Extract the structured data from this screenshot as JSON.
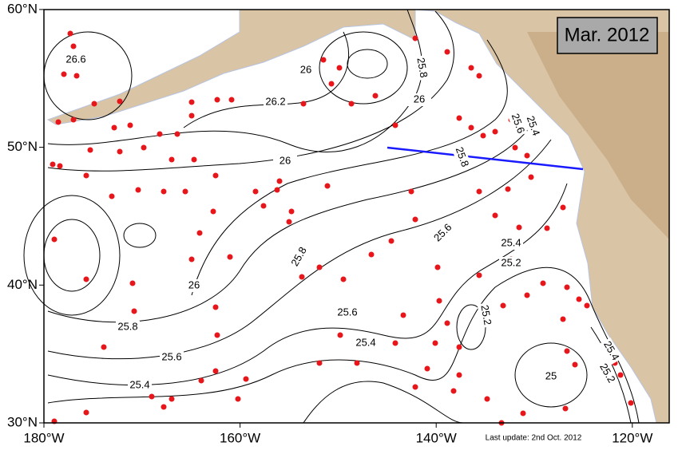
{
  "map": {
    "title": "Mar. 2012",
    "footnote": "Last update: 2nd Oct. 2012",
    "lon_ticks": [
      {
        "value": -180,
        "label": "180°W"
      },
      {
        "value": -160,
        "label": "160°W"
      },
      {
        "value": -140,
        "label": "140°W"
      },
      {
        "value": -120,
        "label": "120°W"
      }
    ],
    "lat_ticks": [
      {
        "value": 30,
        "label": "30°N"
      },
      {
        "value": 40,
        "label": "40°N"
      },
      {
        "value": 50,
        "label": "50°N"
      },
      {
        "value": 60,
        "label": "60°N"
      }
    ],
    "contour_labels": [
      "26.6",
      "26",
      "26.2",
      "25.8",
      "26",
      "25.6",
      "25.4",
      "25.8",
      "26",
      "25.8",
      "25.6",
      "25.4",
      "25.2",
      "26",
      "25.6",
      "25.8",
      "25.4",
      "25.6",
      "25.4",
      "25.2",
      "25",
      "25.4",
      "25.2"
    ]
  }
}
